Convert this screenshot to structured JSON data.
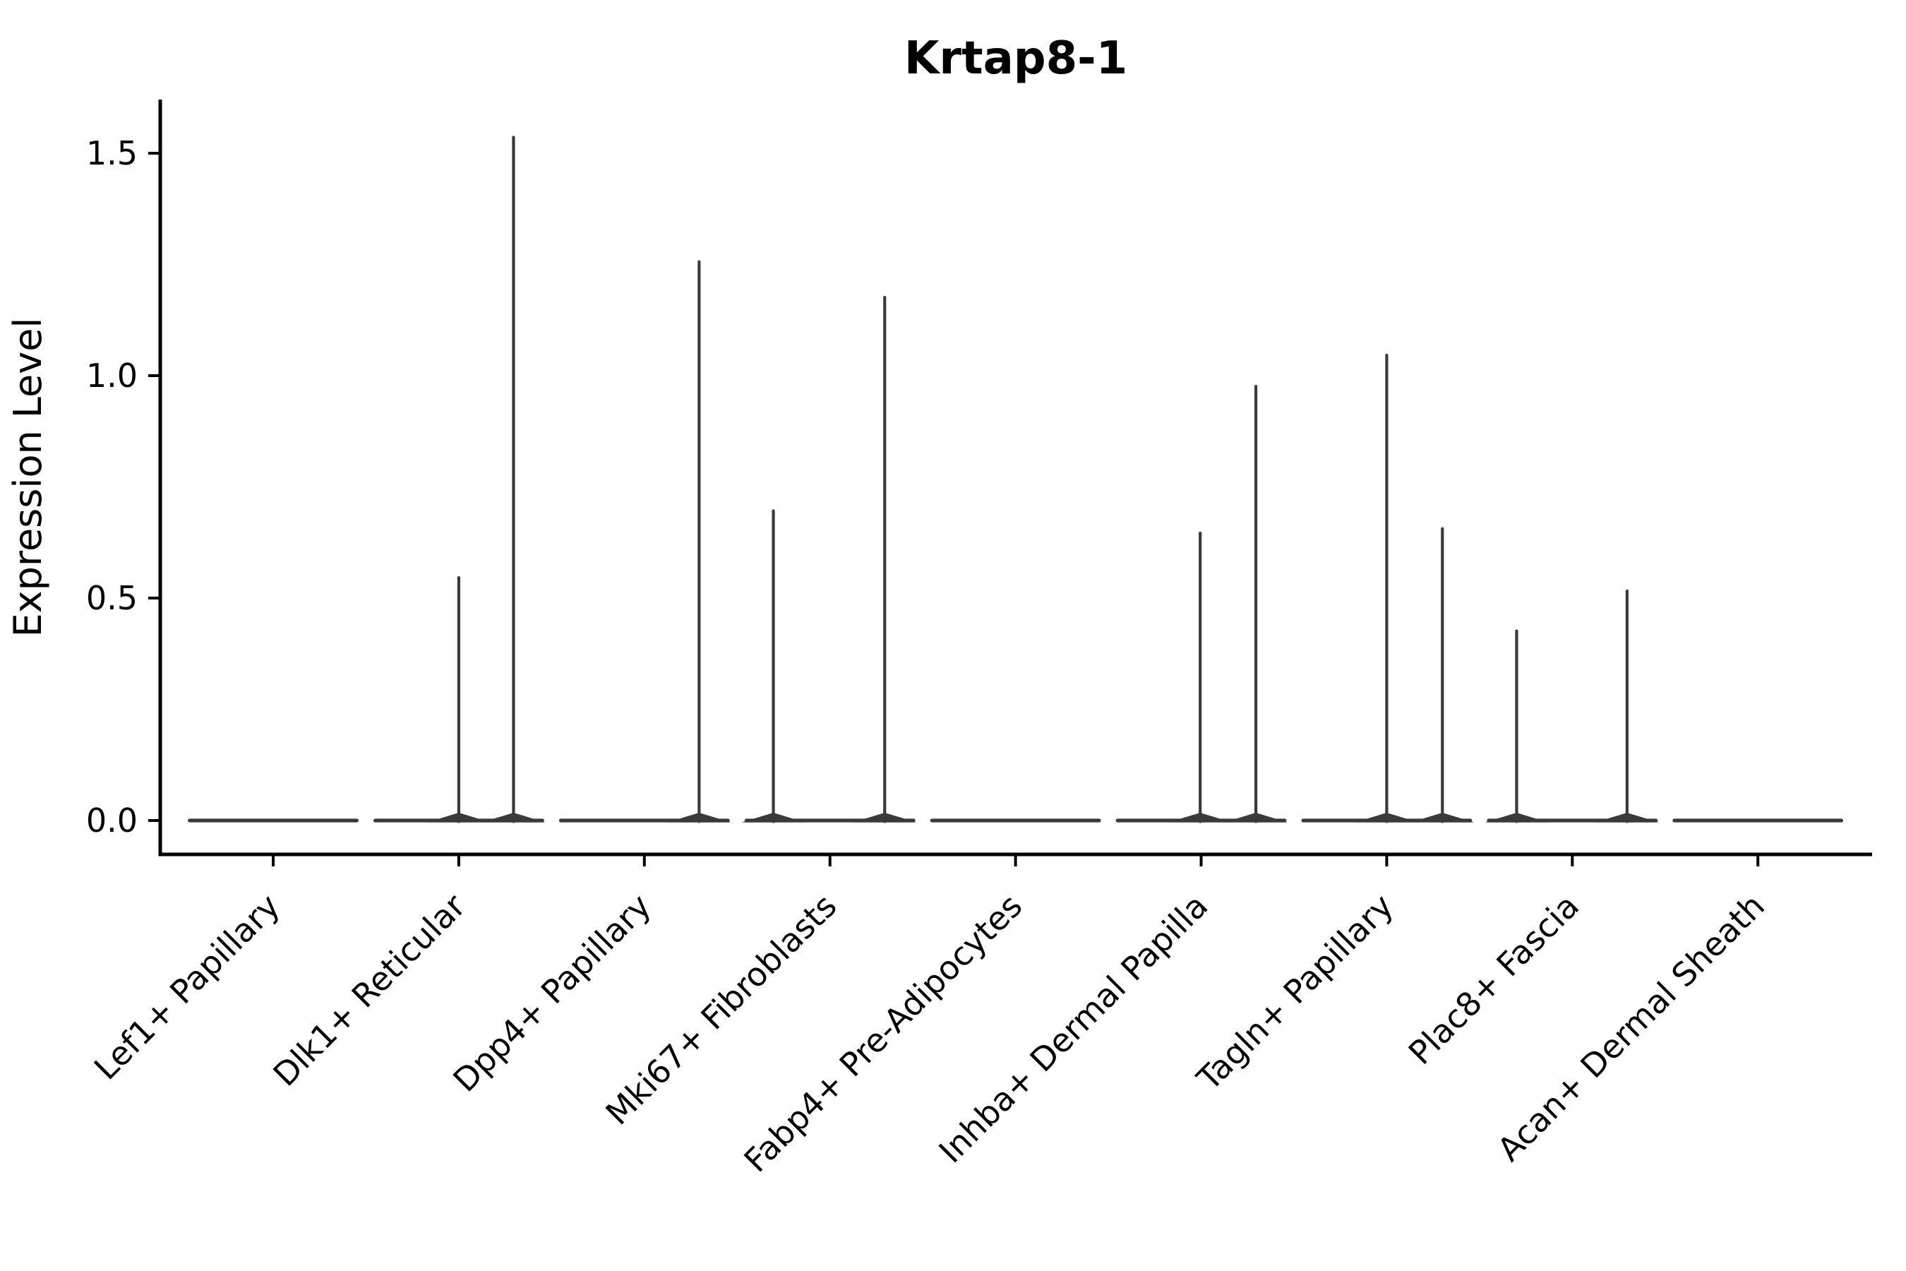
{
  "chart_data": {
    "type": "violin",
    "title": "Krtap8-1",
    "xlabel": "",
    "ylabel": "Expression Level",
    "y_ticks": [
      {
        "value": 0.0,
        "label": "0.0"
      },
      {
        "value": 0.5,
        "label": "0.5"
      },
      {
        "value": 1.0,
        "label": "1.0"
      },
      {
        "value": 1.5,
        "label": "1.5"
      }
    ],
    "ylim": [
      -0.08,
      1.62
    ],
    "grid": false,
    "legend": null,
    "x_tick_rotation_deg": 45,
    "violin_half_width": 0.46,
    "colors": {
      "violin": "#3a3a3a",
      "axis": "#000000",
      "title": "#000000",
      "background": "#ffffff"
    },
    "categories": [
      "Lef1+ Papillary",
      "Dlk1+ Reticular",
      "Dpp4+ Papillary",
      "Mki67+ Fibroblasts",
      "Fabp4+ Pre-Adipocytes",
      "Inhba+ Dermal Papilla",
      "Tagln+ Papillary",
      "Plac8+ Fascia",
      "Acan+ Dermal Sheath"
    ],
    "series": [
      {
        "category": "Lef1+ Papillary",
        "baseline": 0.0,
        "spikes": []
      },
      {
        "category": "Dlk1+ Reticular",
        "baseline": 0.0,
        "spikes": [
          {
            "offset": 0.0,
            "value": 0.55
          },
          {
            "offset": 0.295,
            "value": 1.54
          }
        ]
      },
      {
        "category": "Dpp4+ Papillary",
        "baseline": 0.0,
        "spikes": [
          {
            "offset": 0.295,
            "value": 1.26
          }
        ]
      },
      {
        "category": "Mki67+ Fibroblasts",
        "baseline": 0.0,
        "spikes": [
          {
            "offset": -0.305,
            "value": 0.7
          },
          {
            "offset": 0.295,
            "value": 1.18
          }
        ]
      },
      {
        "category": "Fabp4+ Pre-Adipocytes",
        "baseline": 0.0,
        "spikes": []
      },
      {
        "category": "Inhba+ Dermal Papilla",
        "baseline": 0.0,
        "spikes": [
          {
            "offset": -0.005,
            "value": 0.65
          },
          {
            "offset": 0.295,
            "value": 0.98
          }
        ]
      },
      {
        "category": "Tagln+ Papillary",
        "baseline": 0.0,
        "spikes": [
          {
            "offset": 0.0,
            "value": 1.05
          },
          {
            "offset": 0.3,
            "value": 0.66
          }
        ]
      },
      {
        "category": "Plac8+ Fascia",
        "baseline": 0.0,
        "spikes": [
          {
            "offset": -0.3,
            "value": 0.43
          },
          {
            "offset": 0.295,
            "value": 0.52
          }
        ]
      },
      {
        "category": "Acan+ Dermal Sheath",
        "baseline": 0.0,
        "spikes": []
      }
    ]
  }
}
